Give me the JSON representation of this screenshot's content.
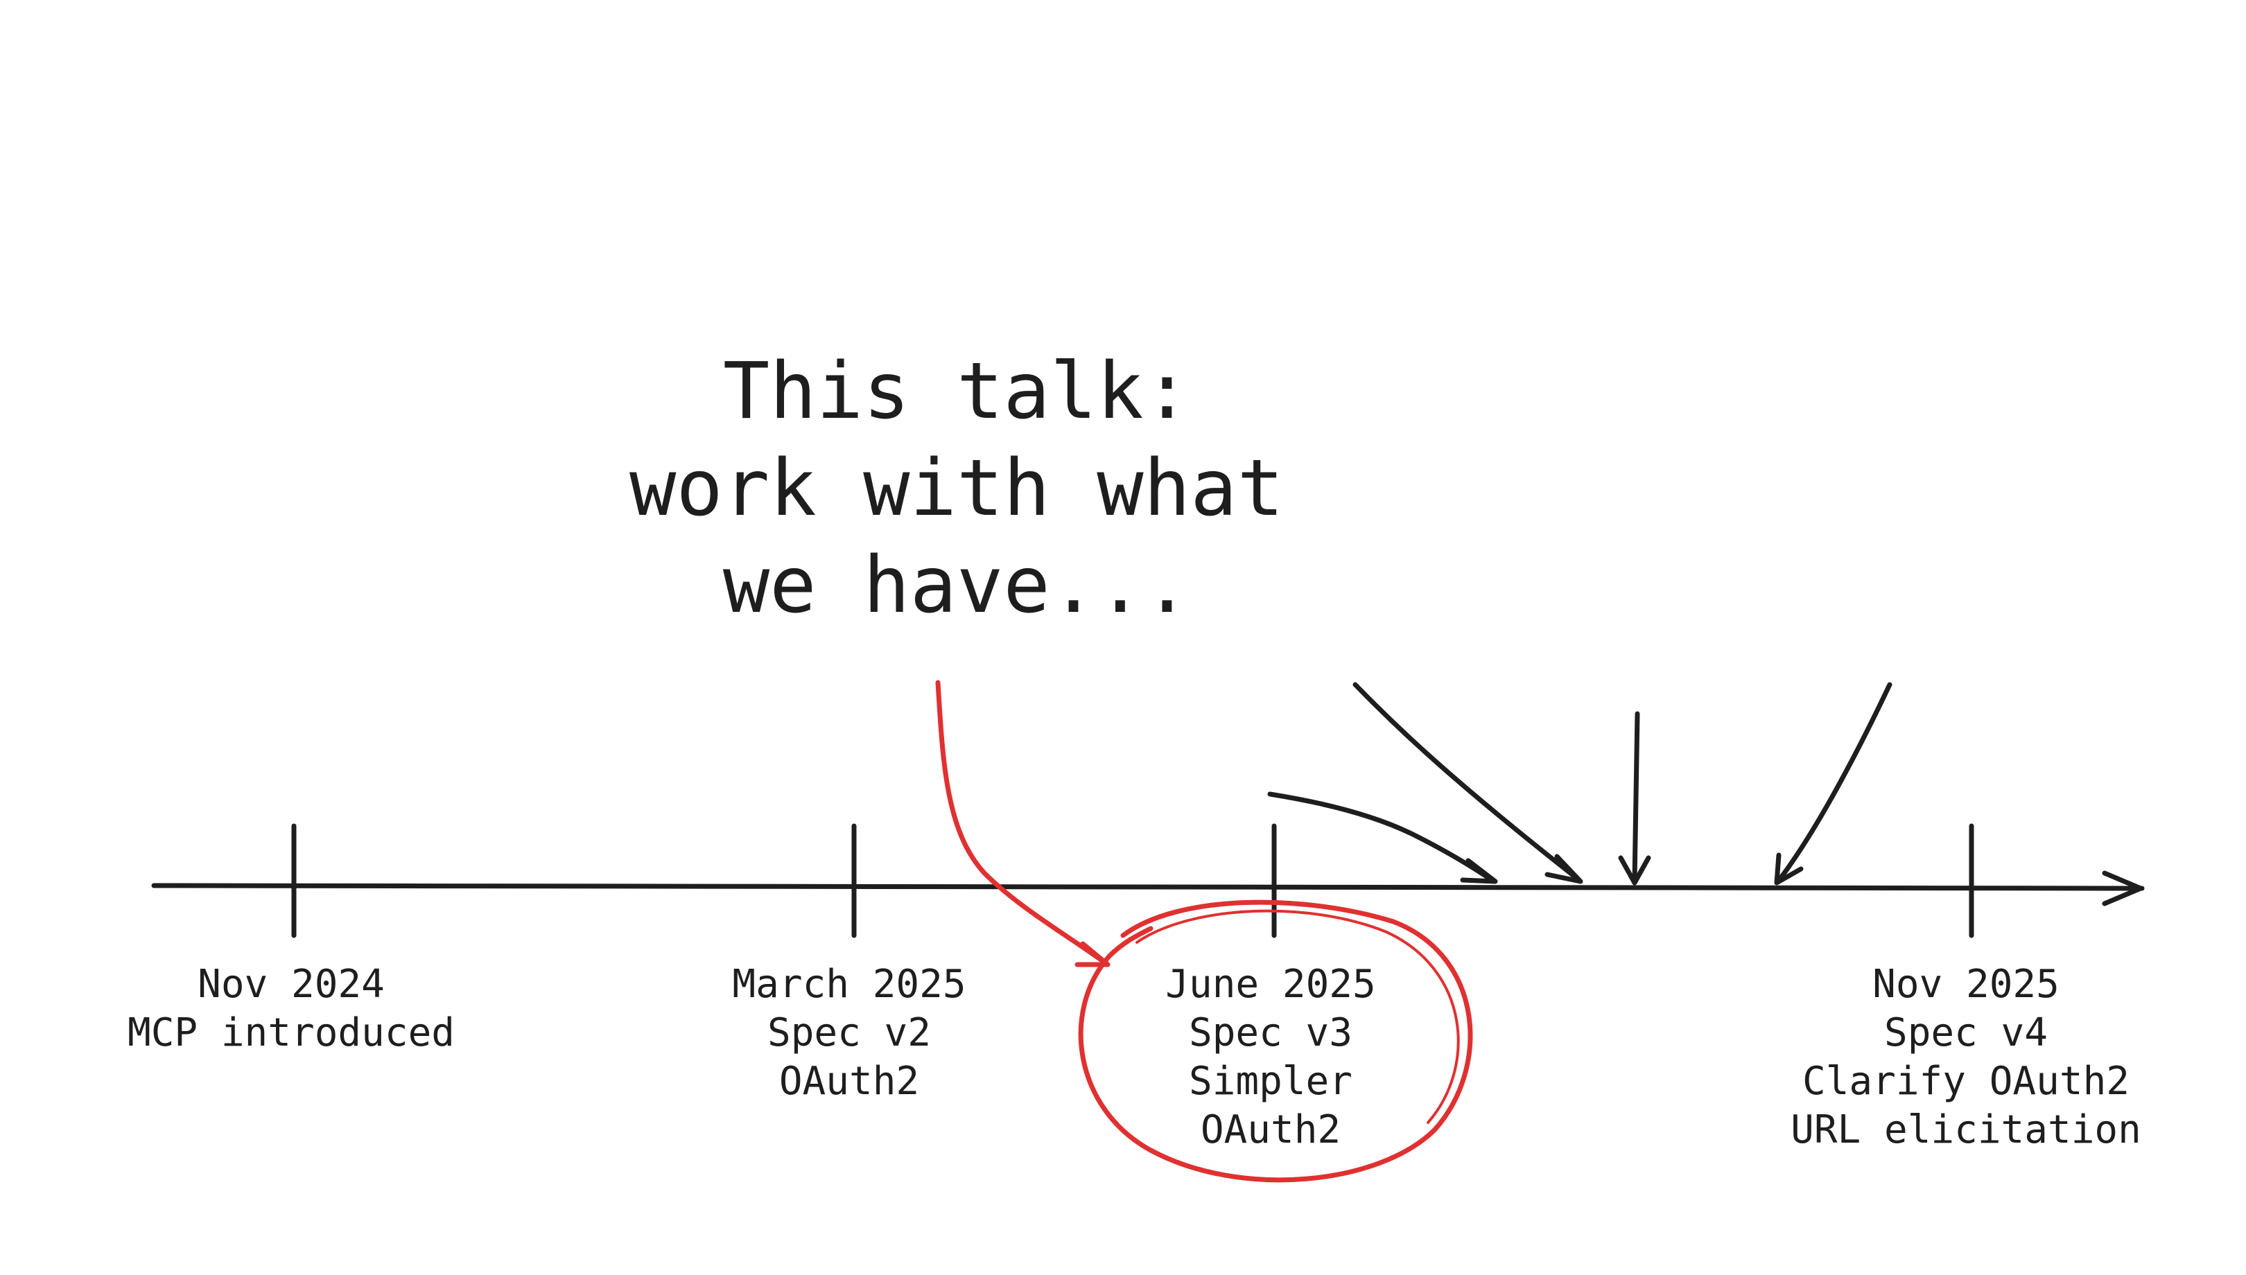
{
  "callout": {
    "lines": [
      "This talk:",
      "work with what",
      "we have..."
    ]
  },
  "milestones": [
    {
      "date": "Nov 2024",
      "lines": [
        "MCP introduced"
      ]
    },
    {
      "date": "March 2025",
      "lines": [
        "Spec v2",
        "OAuth2"
      ]
    },
    {
      "date": "June 2025",
      "lines": [
        "Spec v3",
        "Simpler",
        "OAuth2"
      ],
      "highlighted": true
    },
    {
      "date": "Nov 2025",
      "lines": [
        "Spec v4",
        "Clarify OAuth2",
        "URL elicitation"
      ]
    }
  ],
  "colors": {
    "ink": "#1e1e1e",
    "highlight": "#e03131",
    "background": "#ffffff"
  },
  "icons": {
    "timeline_arrowhead": "arrow-right-icon",
    "callout_pointer": "curved-arrow-icon",
    "future_arrows": "arrow-down-icon"
  }
}
